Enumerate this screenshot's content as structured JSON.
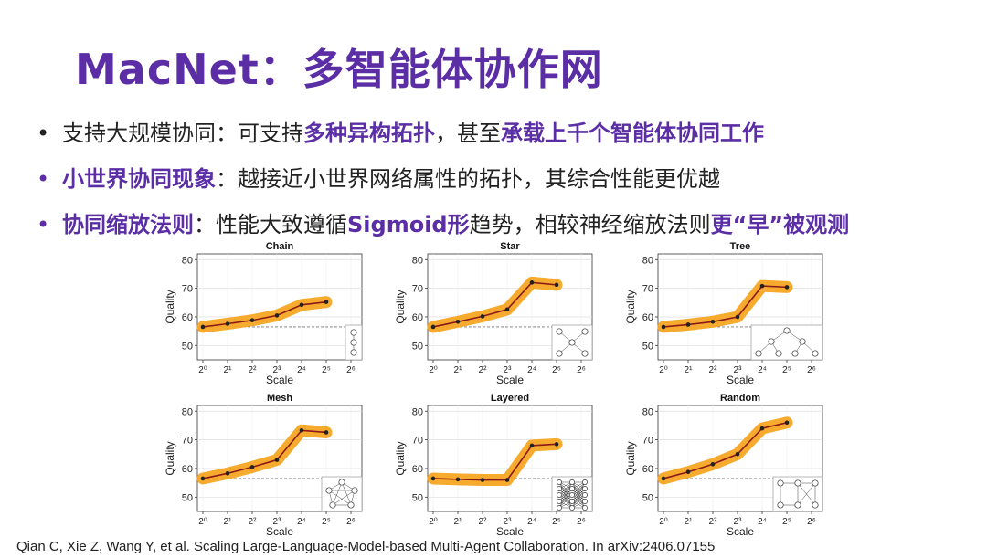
{
  "title": "MacNet：多智能体协作网",
  "bullets": [
    {
      "segments": [
        {
          "text": "支持大规模协同：可支持",
          "hl": false
        },
        {
          "text": "多种异构拓扑",
          "hl": true
        },
        {
          "text": "，甚至",
          "hl": false
        },
        {
          "text": "承载上千个智能体协同工作",
          "hl": true
        }
      ]
    },
    {
      "segments": [
        {
          "text": "小世界协同现象",
          "hl": true
        },
        {
          "text": "：越接近小世界网络属性的拓扑，其综合性能更优越",
          "hl": false
        }
      ]
    },
    {
      "segments": [
        {
          "text": "协同缩放法则",
          "hl": true
        },
        {
          "text": "：性能大致遵循",
          "hl": false
        },
        {
          "text": "Sigmoid形",
          "hl": true
        },
        {
          "text": "趋势，相较神经缩放法则",
          "hl": false
        },
        {
          "text": "更“早”被观测",
          "hl": true
        }
      ]
    }
  ],
  "colors": {
    "accent": "#5b2ea6",
    "band": "#f5a623",
    "line": "#8b1a1a",
    "point": "#222222"
  },
  "chart_data": [
    {
      "type": "line",
      "title": "Chain",
      "xlabel": "Scale",
      "ylabel": "Quality",
      "x": [
        0,
        1,
        2,
        3,
        4,
        5
      ],
      "xticks": [
        "2⁰",
        "2¹",
        "2²",
        "2³",
        "2⁴",
        "2⁵",
        "2⁶"
      ],
      "ylim": [
        45,
        82
      ],
      "yticks": [
        50,
        60,
        70,
        80
      ],
      "values": [
        56.5,
        57.6,
        58.8,
        60.5,
        64.2,
        65.2
      ],
      "baseline": 56.5,
      "topology": "chain"
    },
    {
      "type": "line",
      "title": "Star",
      "xlabel": "Scale",
      "ylabel": "Quality",
      "x": [
        0,
        1,
        2,
        3,
        4,
        5
      ],
      "xticks": [
        "2⁰",
        "2¹",
        "2²",
        "2³",
        "2⁴",
        "2⁵",
        "2⁶"
      ],
      "ylim": [
        45,
        82
      ],
      "yticks": [
        50,
        60,
        70,
        80
      ],
      "values": [
        56.5,
        58.3,
        60.2,
        62.6,
        72.0,
        71.2
      ],
      "baseline": 56.5,
      "topology": "star"
    },
    {
      "type": "line",
      "title": "Tree",
      "xlabel": "Scale",
      "ylabel": "Quality",
      "x": [
        0,
        1,
        2,
        3,
        4,
        5
      ],
      "xticks": [
        "2⁰",
        "2¹",
        "2²",
        "2³",
        "2⁴",
        "2⁵",
        "2⁶"
      ],
      "ylim": [
        45,
        82
      ],
      "yticks": [
        50,
        60,
        70,
        80
      ],
      "values": [
        56.5,
        57.3,
        58.3,
        60.0,
        70.8,
        70.4
      ],
      "baseline": 56.5,
      "topology": "tree"
    },
    {
      "type": "line",
      "title": "Mesh",
      "xlabel": "Scale",
      "ylabel": "Quality",
      "x": [
        0,
        1,
        2,
        3,
        4,
        5
      ],
      "xticks": [
        "2⁰",
        "2¹",
        "2²",
        "2³",
        "2⁴",
        "2⁵",
        "2⁶"
      ],
      "ylim": [
        45,
        82
      ],
      "yticks": [
        50,
        60,
        70,
        80
      ],
      "values": [
        56.5,
        58.3,
        60.5,
        63.0,
        73.3,
        72.6
      ],
      "baseline": 56.5,
      "topology": "mesh"
    },
    {
      "type": "line",
      "title": "Layered",
      "xlabel": "Scale",
      "ylabel": "Quality",
      "x": [
        0,
        1,
        2,
        3,
        4,
        5
      ],
      "xticks": [
        "2⁰",
        "2¹",
        "2²",
        "2³",
        "2⁴",
        "2⁵",
        "2⁶"
      ],
      "ylim": [
        45,
        82
      ],
      "yticks": [
        50,
        60,
        70,
        80
      ],
      "values": [
        56.5,
        56.2,
        56.0,
        56.0,
        68.0,
        68.5
      ],
      "baseline": 56.5,
      "topology": "layered"
    },
    {
      "type": "line",
      "title": "Random",
      "xlabel": "Scale",
      "ylabel": "Quality",
      "x": [
        0,
        1,
        2,
        3,
        4,
        5
      ],
      "xticks": [
        "2⁰",
        "2¹",
        "2²",
        "2³",
        "2⁴",
        "2⁵",
        "2⁶"
      ],
      "ylim": [
        45,
        82
      ],
      "yticks": [
        50,
        60,
        70,
        80
      ],
      "values": [
        56.5,
        58.8,
        61.5,
        65.0,
        74.0,
        76.0
      ],
      "baseline": 56.5,
      "topology": "random"
    }
  ],
  "citation": "Qian C, Xie Z, Wang Y, et al. Scaling Large-Language-Model-based Multi-Agent Collaboration. In arXiv:2406.07155"
}
